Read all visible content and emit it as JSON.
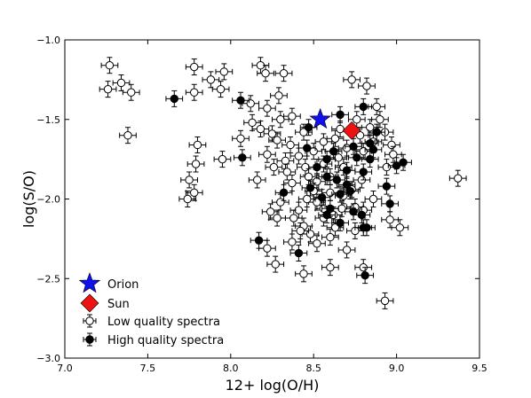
{
  "chart_data": {
    "type": "scatter",
    "xlabel": "12+ log(O/H)",
    "ylabel": "log(S/O)",
    "xlim": [
      7.0,
      9.5
    ],
    "ylim": [
      -3.0,
      -1.0
    ],
    "xticks": [
      "7.0",
      "7.5",
      "8.0",
      "8.5",
      "9.0",
      "9.5"
    ],
    "yticks": [
      "−3.0",
      "−2.5",
      "−2.0",
      "−1.5",
      "−1.0"
    ],
    "xtick_values": [
      7.0,
      7.5,
      8.0,
      8.5,
      9.0,
      9.5
    ],
    "ytick_values": [
      -3.0,
      -2.5,
      -2.0,
      -1.5,
      -1.0
    ],
    "grid": false,
    "legend_position": "lower-left",
    "legend": [
      {
        "label": "Orion",
        "marker": "star",
        "color": "#1010ee"
      },
      {
        "label": "Sun",
        "marker": "diamond",
        "color": "#ee1111"
      },
      {
        "label": "Low quality spectra",
        "marker": "open-circle",
        "color": "#ffffff"
      },
      {
        "label": "High quality spectra",
        "marker": "filled-circle",
        "color": "#000000"
      }
    ],
    "series": [
      {
        "name": "Orion",
        "marker": "star",
        "color": "#1010ee",
        "points": [
          [
            8.54,
            -1.5
          ]
        ]
      },
      {
        "name": "Sun",
        "marker": "diamond",
        "color": "#ee1111",
        "points": [
          [
            8.73,
            -1.57
          ]
        ]
      },
      {
        "name": "Low quality spectra",
        "marker": "open-circle",
        "color": "#ffffff",
        "xerr": 0.05,
        "yerr": 0.05,
        "points": [
          [
            7.27,
            -1.16
          ],
          [
            7.26,
            -1.31
          ],
          [
            7.34,
            -1.27
          ],
          [
            7.4,
            -1.33
          ],
          [
            7.38,
            -1.6
          ],
          [
            7.78,
            -1.17
          ],
          [
            7.78,
            -1.33
          ],
          [
            7.88,
            -1.25
          ],
          [
            7.96,
            -1.2
          ],
          [
            7.94,
            -1.31
          ],
          [
            8.18,
            -1.16
          ],
          [
            8.21,
            -1.21
          ],
          [
            8.32,
            -1.21
          ],
          [
            8.29,
            -1.35
          ],
          [
            8.12,
            -1.4
          ],
          [
            8.22,
            -1.43
          ],
          [
            8.13,
            -1.52
          ],
          [
            8.18,
            -1.56
          ],
          [
            8.25,
            -1.59
          ],
          [
            8.3,
            -1.5
          ],
          [
            8.37,
            -1.48
          ],
          [
            8.28,
            -1.63
          ],
          [
            8.36,
            -1.66
          ],
          [
            8.44,
            -1.58
          ],
          [
            8.06,
            -1.62
          ],
          [
            7.8,
            -1.66
          ],
          [
            7.79,
            -1.78
          ],
          [
            7.95,
            -1.75
          ],
          [
            7.75,
            -1.88
          ],
          [
            7.74,
            -2.0
          ],
          [
            7.78,
            -1.96
          ],
          [
            8.16,
            -1.88
          ],
          [
            8.22,
            -1.72
          ],
          [
            8.26,
            -1.8
          ],
          [
            8.33,
            -1.76
          ],
          [
            8.41,
            -1.73
          ],
          [
            8.45,
            -1.8
          ],
          [
            8.5,
            -1.7
          ],
          [
            8.56,
            -1.64
          ],
          [
            8.63,
            -1.62
          ],
          [
            8.56,
            -1.78
          ],
          [
            8.52,
            -1.89
          ],
          [
            8.6,
            -1.86
          ],
          [
            8.68,
            -1.8
          ],
          [
            8.65,
            -1.74
          ],
          [
            8.73,
            -1.25
          ],
          [
            8.82,
            -1.29
          ],
          [
            8.88,
            -1.42
          ],
          [
            8.76,
            -1.5
          ],
          [
            8.84,
            -1.55
          ],
          [
            8.9,
            -1.5
          ],
          [
            8.93,
            -1.58
          ],
          [
            8.97,
            -1.66
          ],
          [
            8.98,
            -1.72
          ],
          [
            8.94,
            -1.8
          ],
          [
            8.86,
            -1.64
          ],
          [
            8.8,
            -1.7
          ],
          [
            8.73,
            -1.94
          ],
          [
            8.68,
            -1.98
          ],
          [
            8.6,
            -1.96
          ],
          [
            8.52,
            -2.02
          ],
          [
            8.46,
            -2.0
          ],
          [
            8.41,
            -2.07
          ],
          [
            8.37,
            -1.9
          ],
          [
            8.3,
            -2.02
          ],
          [
            8.24,
            -2.08
          ],
          [
            8.28,
            -2.12
          ],
          [
            8.38,
            -2.12
          ],
          [
            8.44,
            -2.17
          ],
          [
            8.56,
            -2.12
          ],
          [
            8.63,
            -2.18
          ],
          [
            8.67,
            -2.06
          ],
          [
            8.75,
            -2.05
          ],
          [
            8.8,
            -2.07
          ],
          [
            8.79,
            -1.88
          ],
          [
            8.86,
            -2.0
          ],
          [
            8.48,
            -2.22
          ],
          [
            8.42,
            -2.2
          ],
          [
            8.52,
            -2.28
          ],
          [
            8.6,
            -2.24
          ],
          [
            8.37,
            -2.27
          ],
          [
            8.22,
            -2.31
          ],
          [
            8.27,
            -2.41
          ],
          [
            8.44,
            -2.47
          ],
          [
            8.6,
            -2.43
          ],
          [
            8.7,
            -2.32
          ],
          [
            8.8,
            -2.43
          ],
          [
            8.75,
            -2.2
          ],
          [
            8.96,
            -2.13
          ],
          [
            9.02,
            -2.18
          ],
          [
            8.93,
            -2.64
          ],
          [
            9.37,
            -1.87
          ],
          [
            8.66,
            -1.56
          ],
          [
            8.7,
            -1.68
          ],
          [
            8.78,
            -1.6
          ],
          [
            8.56,
            -2.06
          ],
          [
            8.62,
            -2.1
          ],
          [
            8.34,
            -1.83
          ],
          [
            8.47,
            -1.86
          ],
          [
            8.5,
            -1.95
          ]
        ]
      },
      {
        "name": "High quality spectra",
        "marker": "filled-circle",
        "color": "#000000",
        "xerr": 0.05,
        "yerr": 0.05,
        "points": [
          [
            7.66,
            -1.37
          ],
          [
            8.06,
            -1.38
          ],
          [
            8.07,
            -1.74
          ],
          [
            8.17,
            -2.26
          ],
          [
            8.32,
            -1.96
          ],
          [
            8.41,
            -2.34
          ],
          [
            8.47,
            -1.55
          ],
          [
            8.46,
            -1.68
          ],
          [
            8.48,
            -1.93
          ],
          [
            8.52,
            -1.8
          ],
          [
            8.58,
            -1.75
          ],
          [
            8.55,
            -1.99
          ],
          [
            8.62,
            -1.7
          ],
          [
            8.66,
            -1.47
          ],
          [
            8.7,
            -1.82
          ],
          [
            8.74,
            -1.67
          ],
          [
            8.76,
            -1.74
          ],
          [
            8.8,
            -1.83
          ],
          [
            8.84,
            -1.75
          ],
          [
            8.8,
            -1.42
          ],
          [
            8.84,
            -1.65
          ],
          [
            8.86,
            -1.69
          ],
          [
            8.88,
            -1.58
          ],
          [
            8.72,
            -1.95
          ],
          [
            8.66,
            -1.97
          ],
          [
            8.6,
            -2.06
          ],
          [
            8.58,
            -2.1
          ],
          [
            8.66,
            -2.15
          ],
          [
            8.74,
            -2.08
          ],
          [
            8.79,
            -2.1
          ],
          [
            8.8,
            -2.18
          ],
          [
            8.64,
            -1.88
          ],
          [
            8.7,
            -1.91
          ],
          [
            8.96,
            -2.03
          ],
          [
            9.0,
            -1.79
          ],
          [
            9.04,
            -1.77
          ],
          [
            8.94,
            -1.92
          ],
          [
            8.81,
            -2.48
          ],
          [
            8.82,
            -2.18
          ],
          [
            8.58,
            -1.86
          ]
        ]
      }
    ]
  }
}
